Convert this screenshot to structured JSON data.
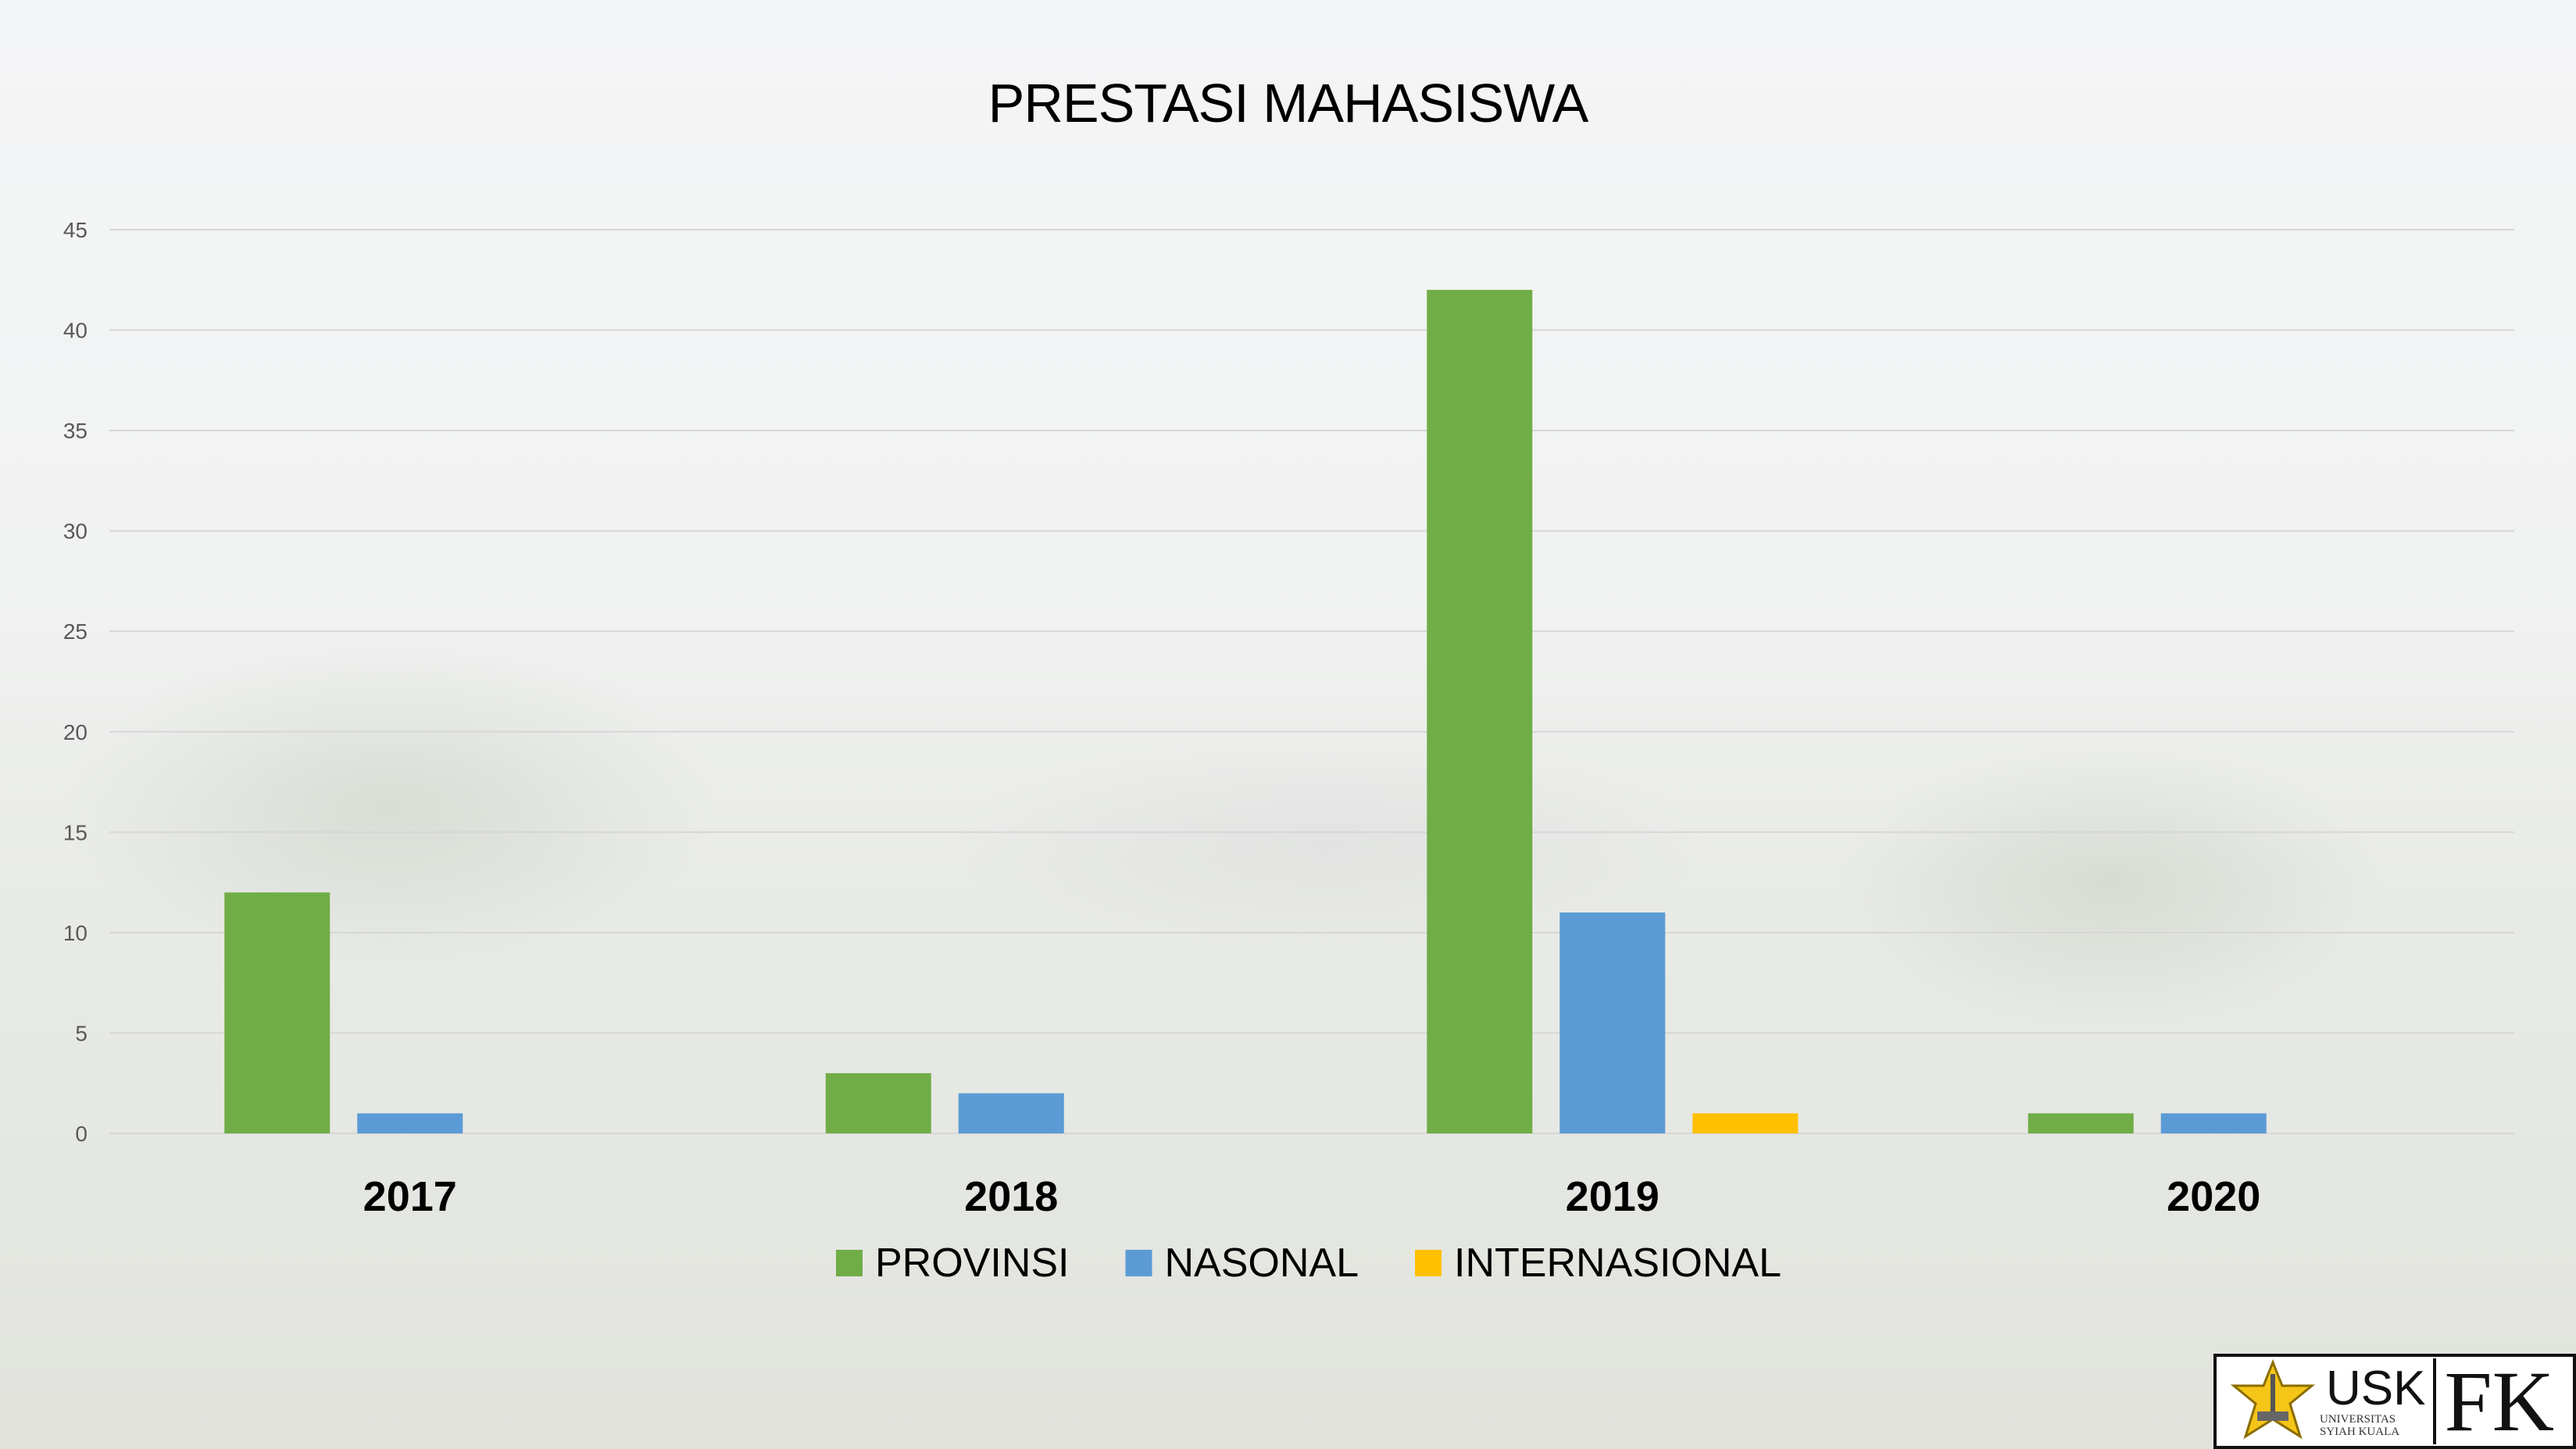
{
  "chart_data": {
    "type": "bar",
    "title": "PRESTASI MAHASISWA",
    "categories": [
      "2017",
      "2018",
      "2019",
      "2020"
    ],
    "series": [
      {
        "name": "PROVINSI",
        "color": "#70ad47",
        "values": [
          12,
          3,
          42,
          1
        ]
      },
      {
        "name": "NASONAL",
        "color": "#5b9bd5",
        "values": [
          1,
          2,
          11,
          1
        ]
      },
      {
        "name": "INTERNASIONAL",
        "color": "#ffc000",
        "values": [
          0,
          0,
          1,
          0
        ]
      }
    ],
    "ylim": [
      0,
      45
    ],
    "yticks": [
      0,
      5,
      10,
      15,
      20,
      25,
      30,
      35,
      40,
      45
    ],
    "grid": true,
    "legend": "bottom"
  },
  "logo": {
    "text": "USK",
    "subtitle": "UNIVERSITAS SYIAH KUALA",
    "faculty": "FK"
  }
}
